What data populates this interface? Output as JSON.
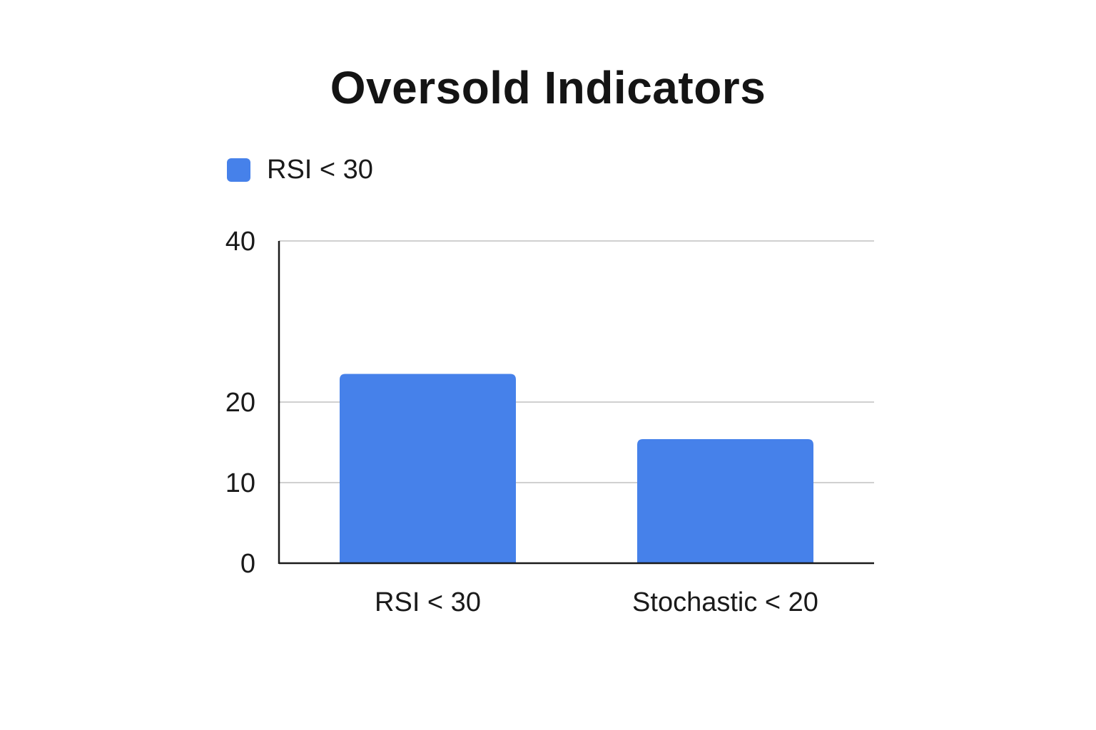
{
  "chart_data": {
    "type": "bar",
    "title": "Oversold Indicators",
    "categories": [
      "RSI < 30",
      "Stochastic < 20"
    ],
    "series": [
      {
        "name": "RSI < 30",
        "values": [
          23.5,
          15.4
        ],
        "color": "#4681EA"
      }
    ],
    "xlabel": "",
    "ylabel": "",
    "yticks": [
      0,
      10,
      20,
      40
    ],
    "ylim": [
      0,
      40
    ],
    "grid": true,
    "legend_position": "top-left"
  }
}
